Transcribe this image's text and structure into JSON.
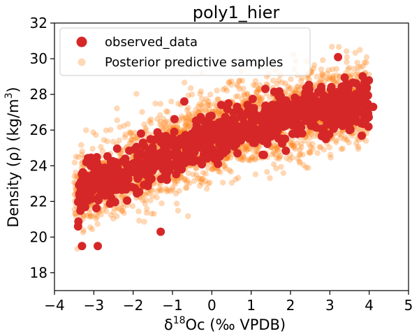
{
  "chart_data": {
    "type": "scatter",
    "title": "poly1_hier",
    "xlabel": {
      "prefix": "δ",
      "sup": "18",
      "rest": "Oc (‰ VPDB)"
    },
    "ylabel": {
      "text": "Density (ρ) (kg/m",
      "sup": "3",
      "end": ")"
    },
    "xlim": [
      -4,
      5
    ],
    "ylim": [
      17,
      32
    ],
    "xticks": [
      -4,
      -3,
      -2,
      -1,
      0,
      1,
      2,
      3,
      4,
      5
    ],
    "yticks": [
      18,
      20,
      22,
      24,
      26,
      28,
      30,
      32
    ],
    "xtick_labels": [
      "−4",
      "−3",
      "−2",
      "−1",
      "0",
      "1",
      "2",
      "3",
      "4",
      "5"
    ],
    "ytick_labels": [
      "18",
      "20",
      "22",
      "24",
      "26",
      "28",
      "30",
      "32"
    ],
    "grid": false,
    "legend_position": "top-left",
    "series": [
      {
        "name": "observed_data",
        "color": "#d62728",
        "marker": "circle",
        "trend": {
          "x_range": [
            -3.4,
            4.1
          ],
          "y_at_min": 21.0,
          "y_at_max": 27.6,
          "curvature": "concave"
        },
        "highlight_points": [
          {
            "x": -3.4,
            "y": 20.6
          },
          {
            "x": -3.3,
            "y": 19.5
          },
          {
            "x": -2.9,
            "y": 19.5
          },
          {
            "x": -1.3,
            "y": 20.3
          },
          {
            "x": -0.7,
            "y": 27.6
          },
          {
            "x": 4.1,
            "y": 27.3
          },
          {
            "x": -1.8,
            "y": 25.8
          },
          {
            "x": 2.9,
            "y": 25.5
          }
        ]
      },
      {
        "name": "Posterior predictive samples",
        "color": "#ff7f0e",
        "marker": "circle",
        "trend": {
          "x_range": [
            -3.5,
            4.0
          ],
          "y_at_min": 18.1,
          "y_at_max": 30.8
        }
      }
    ]
  }
}
